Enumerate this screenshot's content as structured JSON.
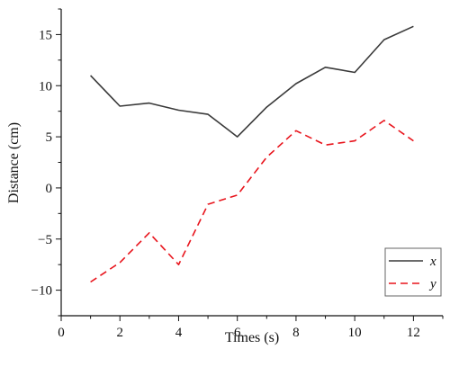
{
  "chart_data": {
    "type": "line",
    "title": "",
    "xlabel": "Times (s)",
    "ylabel": "Distance (cm)",
    "xlim": [
      0,
      13
    ],
    "ylim": [
      -12.5,
      17.5
    ],
    "x_ticks": [
      "0",
      "2",
      "4",
      "6",
      "8",
      "10",
      "12"
    ],
    "y_ticks": [
      "15",
      "10",
      "5",
      "0",
      "−5",
      "−10"
    ],
    "grid": false,
    "legend": "bottom-right",
    "x": [
      1,
      2,
      3,
      4,
      5,
      6,
      7,
      8,
      9,
      10,
      11,
      12
    ],
    "series": [
      {
        "name": "x",
        "color": "#3a3a3a",
        "style": "solid",
        "values": [
          11.0,
          8.0,
          8.3,
          7.6,
          7.2,
          5.0,
          7.9,
          10.2,
          11.8,
          11.3,
          14.5,
          15.8
        ]
      },
      {
        "name": "y",
        "color": "#e8141c",
        "style": "dashed",
        "values": [
          -9.2,
          -7.3,
          -4.4,
          -7.5,
          -1.6,
          -0.7,
          3.0,
          5.6,
          4.2,
          4.6,
          6.6,
          4.6
        ]
      }
    ]
  }
}
